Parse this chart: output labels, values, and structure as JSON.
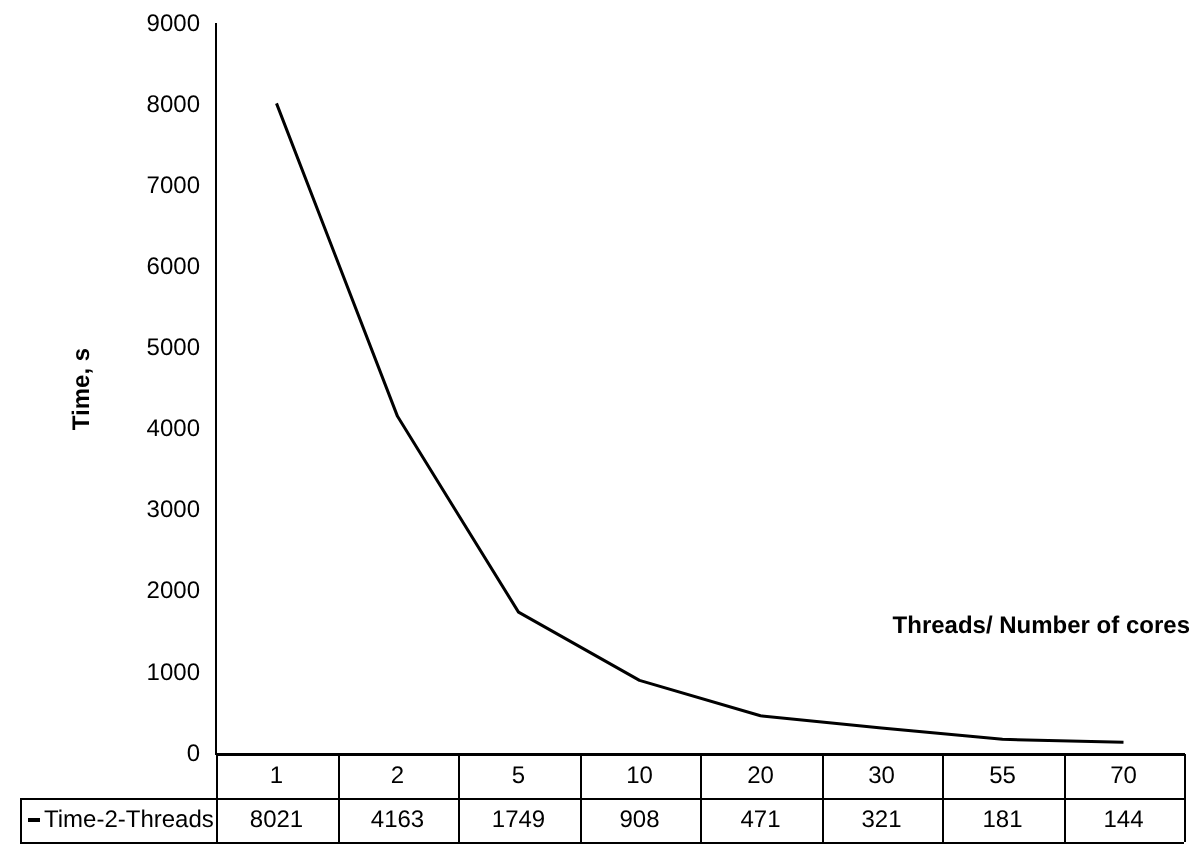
{
  "chart_data": {
    "type": "line",
    "xlabel": "Threads/ Number of cores",
    "ylabel": "Time, s",
    "categories": [
      "1",
      "2",
      "5",
      "10",
      "20",
      "30",
      "55",
      "70"
    ],
    "series": [
      {
        "name": "Time-2-Threads",
        "color": "#000000",
        "values": [
          8021,
          4163,
          1749,
          908,
          471,
          321,
          181,
          144
        ]
      }
    ],
    "ylim": [
      0,
      9000
    ],
    "yticks": [
      0,
      1000,
      2000,
      3000,
      4000,
      5000,
      6000,
      7000,
      8000,
      9000
    ],
    "grid": false,
    "legend": "bottom",
    "marker": "none",
    "line_style": "solid",
    "data_labels": true
  }
}
